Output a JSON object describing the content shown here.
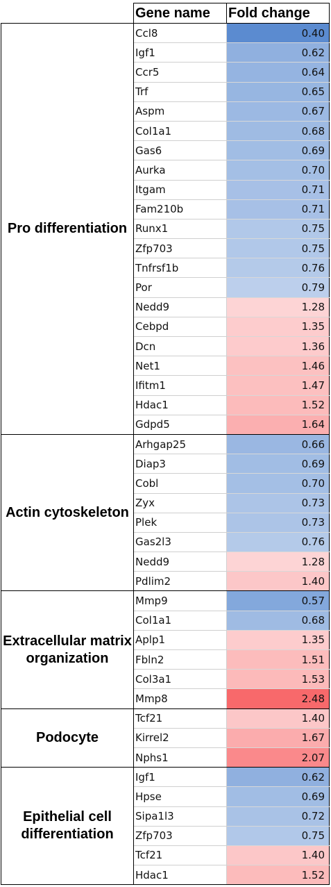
{
  "header": {
    "gene_name": "Gene name",
    "fold_change": "Fold change"
  },
  "groups": [
    {
      "name": "Pro differentiation",
      "rows": [
        {
          "gene": "Ccl8",
          "fold": "0.40"
        },
        {
          "gene": "Igf1",
          "fold": "0.62"
        },
        {
          "gene": "Ccr5",
          "fold": "0.64"
        },
        {
          "gene": "Trf",
          "fold": "0.65"
        },
        {
          "gene": "Aspm",
          "fold": "0.67"
        },
        {
          "gene": "Col1a1",
          "fold": "0.68"
        },
        {
          "gene": "Gas6",
          "fold": "0.69"
        },
        {
          "gene": "Aurka",
          "fold": "0.70"
        },
        {
          "gene": "Itgam",
          "fold": "0.71"
        },
        {
          "gene": "Fam210b",
          "fold": "0.71"
        },
        {
          "gene": "Runx1",
          "fold": "0.75"
        },
        {
          "gene": "Zfp703",
          "fold": "0.75"
        },
        {
          "gene": "Tnfrsf1b",
          "fold": "0.76"
        },
        {
          "gene": "Por",
          "fold": "0.79"
        },
        {
          "gene": "Nedd9",
          "fold": "1.28"
        },
        {
          "gene": "Cebpd",
          "fold": "1.35"
        },
        {
          "gene": "Dcn",
          "fold": "1.36"
        },
        {
          "gene": "Net1",
          "fold": "1.46"
        },
        {
          "gene": "Ifitm1",
          "fold": "1.47"
        },
        {
          "gene": "Hdac1",
          "fold": "1.52"
        },
        {
          "gene": "Gdpd5",
          "fold": "1.64"
        }
      ]
    },
    {
      "name": "Actin cytoskeleton",
      "rows": [
        {
          "gene": "Arhgap25",
          "fold": "0.66"
        },
        {
          "gene": "Diap3",
          "fold": "0.69"
        },
        {
          "gene": "Cobl",
          "fold": "0.70"
        },
        {
          "gene": "Zyx",
          "fold": "0.73"
        },
        {
          "gene": "Plek",
          "fold": "0.73"
        },
        {
          "gene": "Gas2l3",
          "fold": "0.76"
        },
        {
          "gene": "Nedd9",
          "fold": "1.28"
        },
        {
          "gene": "Pdlim2",
          "fold": "1.40"
        }
      ]
    },
    {
      "name": "Extracellular matrix organization",
      "rows": [
        {
          "gene": "Mmp9",
          "fold": "0.57"
        },
        {
          "gene": "Col1a1",
          "fold": "0.68"
        },
        {
          "gene": "Aplp1",
          "fold": "1.35"
        },
        {
          "gene": "Fbln2",
          "fold": "1.51"
        },
        {
          "gene": "Col3a1",
          "fold": "1.53"
        },
        {
          "gene": "Mmp8",
          "fold": "2.48"
        }
      ]
    },
    {
      "name": "Podocyte",
      "rows": [
        {
          "gene": "Tcf21",
          "fold": "1.40"
        },
        {
          "gene": "Kirrel2",
          "fold": "1.67"
        },
        {
          "gene": "Nphs1",
          "fold": "2.07"
        }
      ]
    },
    {
      "name": "Epithelial cell differentiation",
      "rows": [
        {
          "gene": "Igf1",
          "fold": "0.62"
        },
        {
          "gene": "Hpse",
          "fold": "0.69"
        },
        {
          "gene": "Sipa1l3",
          "fold": "0.72"
        },
        {
          "gene": "Zfp703",
          "fold": "0.75"
        },
        {
          "gene": "Tcf21",
          "fold": "1.40"
        },
        {
          "gene": "Hdac1",
          "fold": "1.52"
        }
      ]
    }
  ],
  "colors": {
    "low": "#5b8bd0",
    "mid": "#ffffff",
    "high": "#f8696b"
  }
}
